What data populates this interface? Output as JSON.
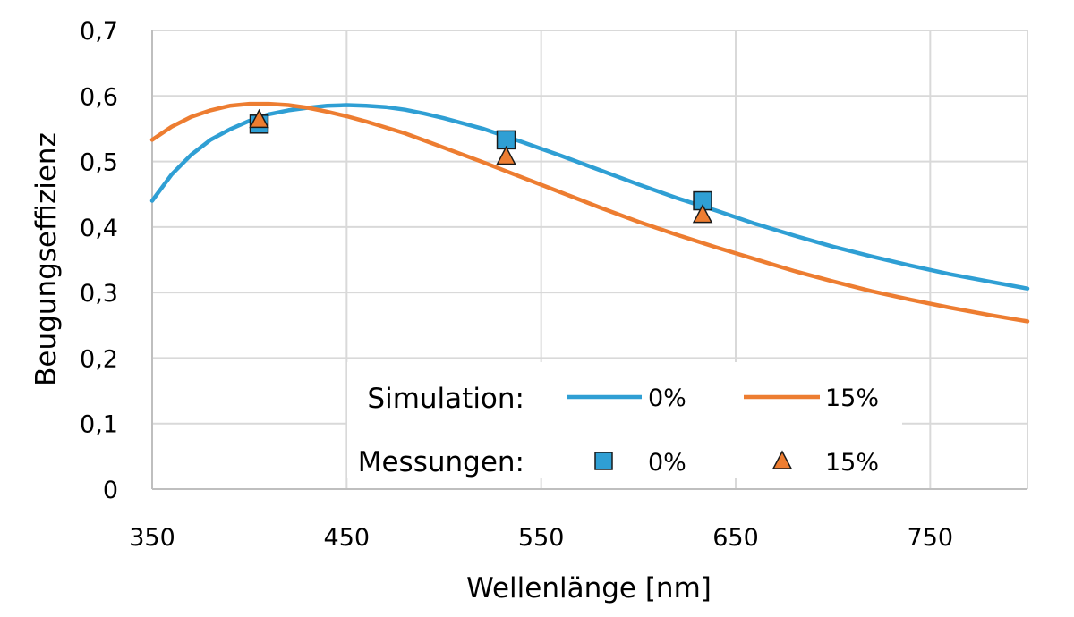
{
  "chart_data": {
    "type": "line",
    "title": "",
    "xlabel": "Wellenlänge [nm]",
    "ylabel": "Beugungseffizienz",
    "xlim": [
      350,
      800
    ],
    "ylim": [
      0,
      0.7
    ],
    "x_ticks": [
      350,
      450,
      550,
      650,
      750
    ],
    "x_tick_labels": [
      "350",
      "450",
      "550",
      "650",
      "750"
    ],
    "y_ticks": [
      0,
      0.1,
      0.2,
      0.3,
      0.4,
      0.5,
      0.6,
      0.7
    ],
    "y_tick_labels": [
      "0",
      "0,1",
      "0,2",
      "0,3",
      "0,4",
      "0,5",
      "0,6",
      "0,7"
    ],
    "grid": true,
    "legend_placement": "bottom-right",
    "legend": {
      "simulation_label": "Simulation:",
      "measurement_label": "Messungen:"
    },
    "series": [
      {
        "name": "0%",
        "group": "Simulation",
        "kind": "line",
        "color": "#2f9fd4",
        "x": [
          350,
          360,
          370,
          380,
          390,
          400,
          410,
          420,
          430,
          440,
          450,
          460,
          470,
          480,
          490,
          500,
          520,
          540,
          560,
          580,
          600,
          620,
          640,
          660,
          680,
          700,
          720,
          740,
          760,
          780,
          800
        ],
        "y": [
          0.44,
          0.48,
          0.51,
          0.533,
          0.549,
          0.562,
          0.572,
          0.578,
          0.582,
          0.585,
          0.586,
          0.585,
          0.583,
          0.579,
          0.573,
          0.566,
          0.55,
          0.53,
          0.509,
          0.487,
          0.465,
          0.444,
          0.425,
          0.405,
          0.387,
          0.37,
          0.355,
          0.341,
          0.328,
          0.317,
          0.306
        ]
      },
      {
        "name": "15%",
        "group": "Simulation",
        "kind": "line",
        "color": "#ed7d31",
        "x": [
          350,
          360,
          370,
          380,
          390,
          400,
          410,
          420,
          430,
          440,
          450,
          460,
          470,
          480,
          490,
          500,
          520,
          540,
          560,
          580,
          600,
          620,
          640,
          660,
          680,
          700,
          720,
          740,
          760,
          780,
          800
        ],
        "y": [
          0.533,
          0.553,
          0.568,
          0.578,
          0.585,
          0.588,
          0.588,
          0.586,
          0.582,
          0.576,
          0.569,
          0.561,
          0.552,
          0.543,
          0.532,
          0.521,
          0.499,
          0.476,
          0.453,
          0.43,
          0.408,
          0.388,
          0.369,
          0.351,
          0.333,
          0.317,
          0.302,
          0.289,
          0.277,
          0.266,
          0.256
        ]
      },
      {
        "name": "0%",
        "group": "Messungen",
        "kind": "scatter",
        "marker": "square",
        "color": "#2f9fd4",
        "x": [
          405,
          532,
          633
        ],
        "y": [
          0.557,
          0.533,
          0.44
        ]
      },
      {
        "name": "15%",
        "group": "Messungen",
        "kind": "scatter",
        "marker": "triangle",
        "color": "#ed7d31",
        "x": [
          405,
          532,
          633
        ],
        "y": [
          0.563,
          0.507,
          0.418
        ]
      }
    ]
  }
}
